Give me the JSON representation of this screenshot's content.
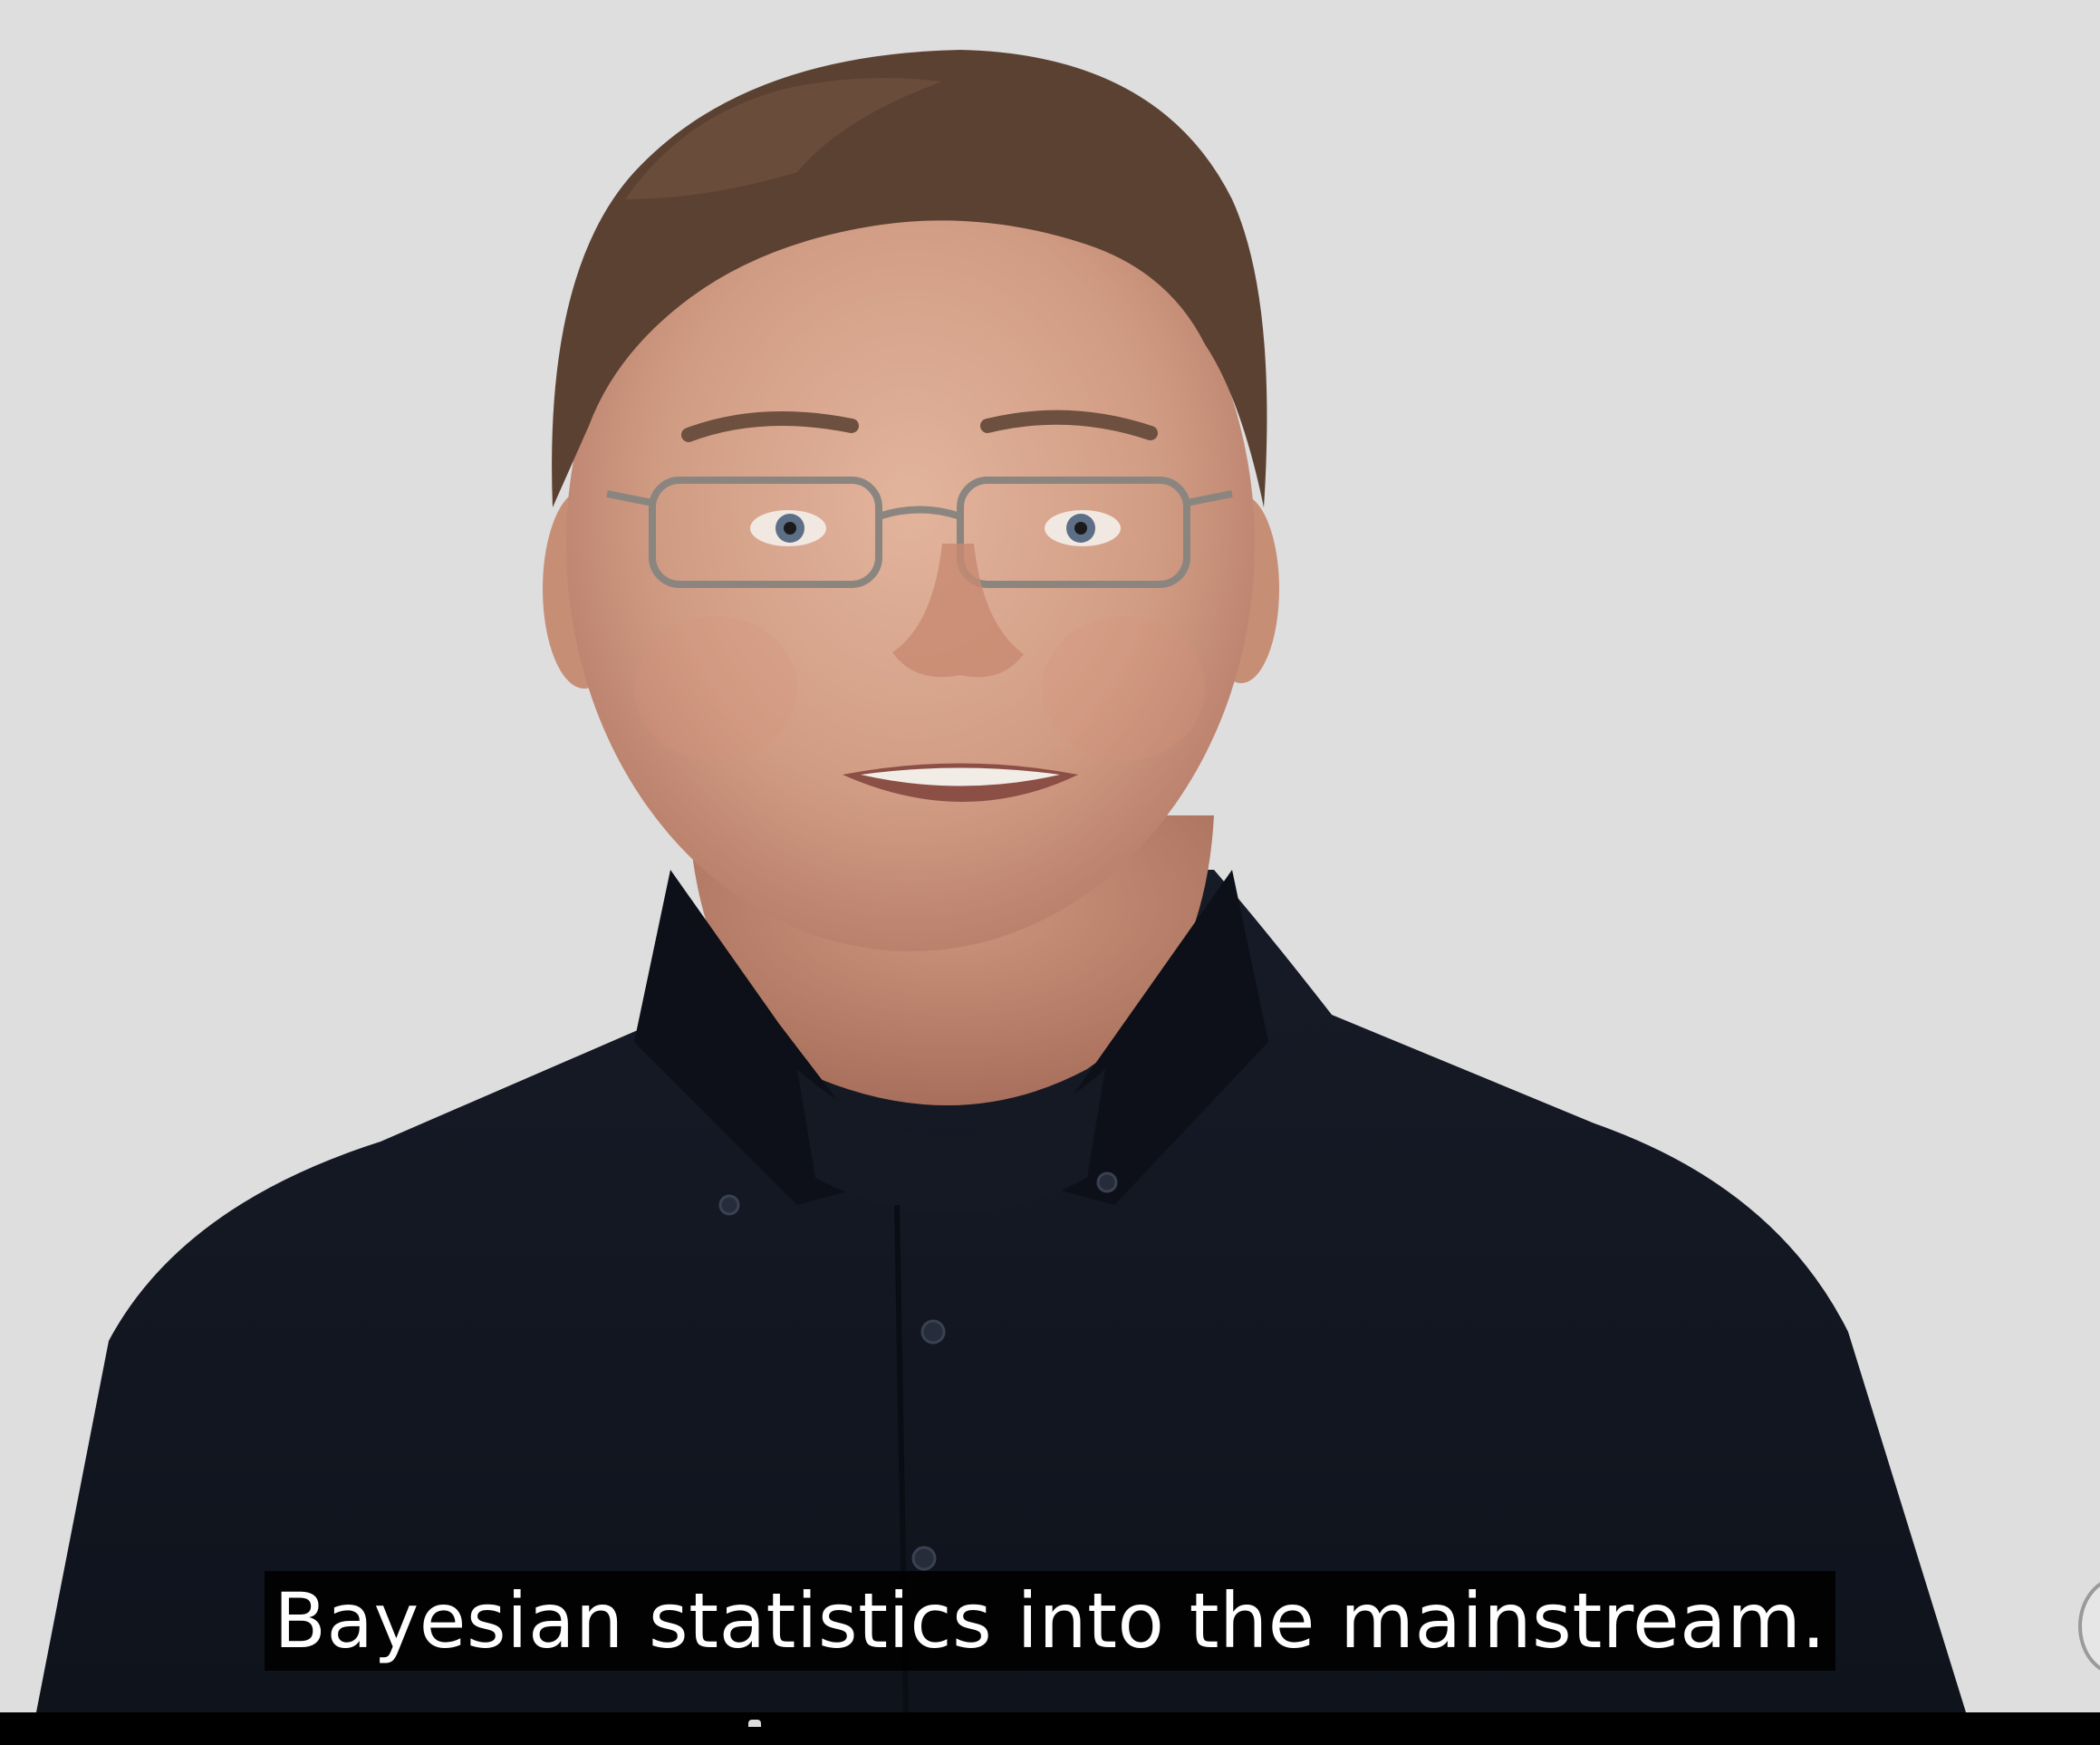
{
  "video": {
    "caption": "Bayesian statistics into the mainstream."
  },
  "colors": {
    "background": "#dedede",
    "shirt": "#121722",
    "caption_bg": "#000000",
    "caption_text": "#ffffff"
  },
  "icons": {
    "watermark": "seal-icon"
  }
}
